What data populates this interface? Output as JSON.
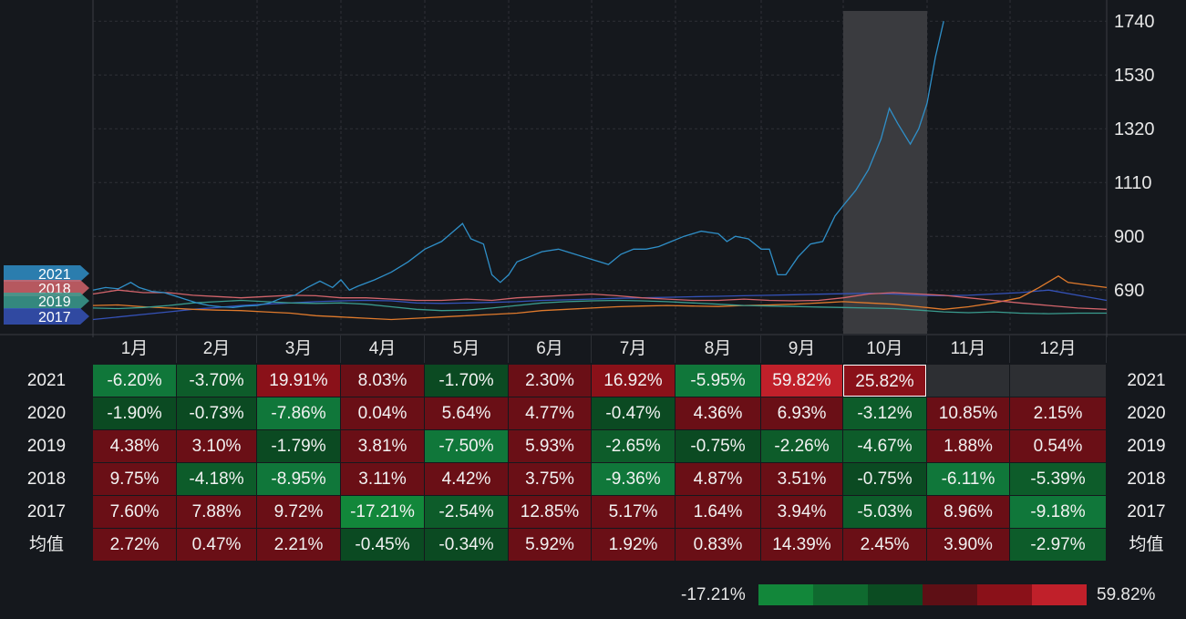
{
  "chart_data": {
    "type": "line",
    "title": "",
    "y_axis_ticks": [
      690,
      900,
      1110,
      1320,
      1530,
      1740
    ],
    "ylim": [
      520,
      1780
    ],
    "x_range": [
      0,
      12
    ],
    "months": [
      "1月",
      "2月",
      "3月",
      "4月",
      "5月",
      "6月",
      "7月",
      "8月",
      "9月",
      "10月",
      "11月",
      "12月"
    ],
    "highlight_month": "10月",
    "series": [
      {
        "name": "2021",
        "color": "#2f8fc8",
        "points": [
          [
            0,
            690
          ],
          [
            0.15,
            700
          ],
          [
            0.3,
            695
          ],
          [
            0.45,
            720
          ],
          [
            0.55,
            700
          ],
          [
            0.7,
            685
          ],
          [
            0.85,
            680
          ],
          [
            1.0,
            665
          ],
          [
            1.1,
            655
          ],
          [
            1.25,
            640
          ],
          [
            1.4,
            630
          ],
          [
            1.55,
            625
          ],
          [
            1.7,
            622
          ],
          [
            1.85,
            628
          ],
          [
            2.0,
            630
          ],
          [
            2.15,
            640
          ],
          [
            2.3,
            660
          ],
          [
            2.45,
            670
          ],
          [
            2.6,
            700
          ],
          [
            2.75,
            725
          ],
          [
            2.9,
            700
          ],
          [
            3.0,
            730
          ],
          [
            3.1,
            690
          ],
          [
            3.2,
            705
          ],
          [
            3.4,
            730
          ],
          [
            3.6,
            760
          ],
          [
            3.8,
            800
          ],
          [
            4.0,
            850
          ],
          [
            4.2,
            880
          ],
          [
            4.45,
            950
          ],
          [
            4.55,
            890
          ],
          [
            4.7,
            870
          ],
          [
            4.8,
            750
          ],
          [
            4.9,
            720
          ],
          [
            5.0,
            750
          ],
          [
            5.1,
            800
          ],
          [
            5.25,
            820
          ],
          [
            5.4,
            840
          ],
          [
            5.6,
            850
          ],
          [
            5.8,
            830
          ],
          [
            6.0,
            810
          ],
          [
            6.1,
            800
          ],
          [
            6.2,
            790
          ],
          [
            6.35,
            830
          ],
          [
            6.5,
            850
          ],
          [
            6.65,
            850
          ],
          [
            6.8,
            860
          ],
          [
            6.95,
            880
          ],
          [
            7.1,
            900
          ],
          [
            7.3,
            920
          ],
          [
            7.5,
            910
          ],
          [
            7.6,
            880
          ],
          [
            7.7,
            900
          ],
          [
            7.85,
            890
          ],
          [
            8.0,
            850
          ],
          [
            8.1,
            850
          ],
          [
            8.2,
            750
          ],
          [
            8.3,
            750
          ],
          [
            8.45,
            820
          ],
          [
            8.6,
            870
          ],
          [
            8.75,
            880
          ],
          [
            8.9,
            980
          ],
          [
            9.0,
            1020
          ],
          [
            9.15,
            1080
          ],
          [
            9.3,
            1160
          ],
          [
            9.45,
            1280
          ],
          [
            9.55,
            1400
          ],
          [
            9.65,
            1340
          ],
          [
            9.8,
            1260
          ],
          [
            9.9,
            1320
          ],
          [
            10.0,
            1420
          ],
          [
            10.1,
            1600
          ],
          [
            10.2,
            1740
          ]
        ]
      },
      {
        "name": "2018",
        "color": "#d2646b",
        "points": [
          [
            0,
            675
          ],
          [
            0.3,
            690
          ],
          [
            0.6,
            680
          ],
          [
            0.9,
            680
          ],
          [
            1.2,
            670
          ],
          [
            1.5,
            665
          ],
          [
            1.8,
            660
          ],
          [
            2.1,
            665
          ],
          [
            2.4,
            670
          ],
          [
            2.7,
            668
          ],
          [
            3.0,
            660
          ],
          [
            3.3,
            660
          ],
          [
            3.6,
            655
          ],
          [
            3.9,
            650
          ],
          [
            4.2,
            650
          ],
          [
            4.5,
            655
          ],
          [
            4.8,
            650
          ],
          [
            5.1,
            660
          ],
          [
            5.4,
            665
          ],
          [
            5.7,
            670
          ],
          [
            6.0,
            675
          ],
          [
            6.3,
            668
          ],
          [
            6.6,
            660
          ],
          [
            6.9,
            655
          ],
          [
            7.2,
            650
          ],
          [
            7.5,
            650
          ],
          [
            7.8,
            655
          ],
          [
            8.1,
            650
          ],
          [
            8.4,
            648
          ],
          [
            8.7,
            650
          ],
          [
            9.0,
            660
          ],
          [
            9.3,
            675
          ],
          [
            9.6,
            680
          ],
          [
            9.9,
            675
          ],
          [
            10.2,
            670
          ],
          [
            10.5,
            660
          ],
          [
            10.8,
            650
          ],
          [
            11.1,
            640
          ],
          [
            11.4,
            630
          ],
          [
            11.7,
            620
          ],
          [
            12.0,
            615
          ]
        ]
      },
      {
        "name": "2019",
        "color": "#3a9c8f",
        "points": [
          [
            0,
            620
          ],
          [
            0.3,
            618
          ],
          [
            0.6,
            622
          ],
          [
            0.9,
            630
          ],
          [
            1.2,
            640
          ],
          [
            1.5,
            645
          ],
          [
            1.8,
            650
          ],
          [
            2.1,
            645
          ],
          [
            2.4,
            640
          ],
          [
            2.7,
            638
          ],
          [
            3.0,
            640
          ],
          [
            3.3,
            635
          ],
          [
            3.6,
            625
          ],
          [
            3.9,
            615
          ],
          [
            4.2,
            610
          ],
          [
            4.5,
            612
          ],
          [
            4.8,
            620
          ],
          [
            5.1,
            630
          ],
          [
            5.4,
            640
          ],
          [
            5.7,
            645
          ],
          [
            6.0,
            648
          ],
          [
            6.3,
            650
          ],
          [
            6.6,
            648
          ],
          [
            6.9,
            645
          ],
          [
            7.2,
            640
          ],
          [
            7.5,
            635
          ],
          [
            7.8,
            630
          ],
          [
            8.1,
            628
          ],
          [
            8.4,
            626
          ],
          [
            8.7,
            624
          ],
          [
            9.0,
            622
          ],
          [
            9.3,
            620
          ],
          [
            9.6,
            618
          ],
          [
            9.9,
            612
          ],
          [
            10.2,
            605
          ],
          [
            10.5,
            602
          ],
          [
            10.8,
            605
          ],
          [
            11.1,
            600
          ],
          [
            11.4,
            598
          ],
          [
            11.7,
            600
          ],
          [
            12.0,
            600
          ]
        ]
      },
      {
        "name": "2020",
        "color": "#e07a2c",
        "points": [
          [
            0,
            630
          ],
          [
            0.3,
            632
          ],
          [
            0.6,
            625
          ],
          [
            0.9,
            620
          ],
          [
            1.2,
            615
          ],
          [
            1.5,
            612
          ],
          [
            1.8,
            610
          ],
          [
            2.1,
            605
          ],
          [
            2.4,
            600
          ],
          [
            2.7,
            590
          ],
          [
            3.0,
            585
          ],
          [
            3.3,
            580
          ],
          [
            3.6,
            575
          ],
          [
            3.9,
            580
          ],
          [
            4.2,
            585
          ],
          [
            4.5,
            590
          ],
          [
            4.8,
            595
          ],
          [
            5.1,
            600
          ],
          [
            5.4,
            610
          ],
          [
            5.7,
            615
          ],
          [
            6.0,
            620
          ],
          [
            6.3,
            625
          ],
          [
            6.6,
            628
          ],
          [
            6.9,
            630
          ],
          [
            7.2,
            628
          ],
          [
            7.5,
            626
          ],
          [
            7.8,
            630
          ],
          [
            8.1,
            632
          ],
          [
            8.4,
            635
          ],
          [
            8.7,
            640
          ],
          [
            9.0,
            645
          ],
          [
            9.3,
            640
          ],
          [
            9.6,
            635
          ],
          [
            9.9,
            625
          ],
          [
            10.2,
            615
          ],
          [
            10.5,
            625
          ],
          [
            10.8,
            640
          ],
          [
            11.1,
            660
          ],
          [
            11.3,
            700
          ],
          [
            11.5,
            745
          ],
          [
            11.6,
            720
          ],
          [
            11.8,
            710
          ],
          [
            12.0,
            700
          ]
        ]
      },
      {
        "name": "2017",
        "color": "#3552b8",
        "points": [
          [
            0,
            575
          ],
          [
            0.3,
            585
          ],
          [
            0.6,
            595
          ],
          [
            0.9,
            605
          ],
          [
            1.2,
            615
          ],
          [
            1.5,
            622
          ],
          [
            1.8,
            630
          ],
          [
            2.1,
            635
          ],
          [
            2.4,
            640
          ],
          [
            2.7,
            645
          ],
          [
            3.0,
            648
          ],
          [
            3.3,
            650
          ],
          [
            3.6,
            648
          ],
          [
            3.9,
            640
          ],
          [
            4.2,
            638
          ],
          [
            4.5,
            640
          ],
          [
            4.8,
            642
          ],
          [
            5.1,
            645
          ],
          [
            5.4,
            650
          ],
          [
            5.7,
            652
          ],
          [
            6.0,
            655
          ],
          [
            6.3,
            658
          ],
          [
            6.6,
            660
          ],
          [
            6.9,
            662
          ],
          [
            7.2,
            664
          ],
          [
            7.5,
            666
          ],
          [
            7.8,
            668
          ],
          [
            8.1,
            670
          ],
          [
            8.4,
            672
          ],
          [
            8.7,
            674
          ],
          [
            9.0,
            676
          ],
          [
            9.3,
            678
          ],
          [
            9.6,
            675
          ],
          [
            9.9,
            670
          ],
          [
            10.2,
            668
          ],
          [
            10.5,
            670
          ],
          [
            10.8,
            675
          ],
          [
            11.1,
            680
          ],
          [
            11.4,
            690
          ],
          [
            11.7,
            670
          ],
          [
            12.0,
            650
          ]
        ]
      }
    ],
    "series_tags": [
      "2021",
      "2018",
      "2019",
      "2017"
    ]
  },
  "table": {
    "columns": [
      "1月",
      "2月",
      "3月",
      "4月",
      "5月",
      "6月",
      "7月",
      "8月",
      "9月",
      "10月",
      "11月",
      "12月"
    ],
    "rows": [
      {
        "label": "2021",
        "values": [
          -6.2,
          -3.7,
          19.91,
          8.03,
          -1.7,
          2.3,
          16.92,
          -5.95,
          59.82,
          25.82,
          null,
          null
        ],
        "text": [
          "-6.20%",
          "-3.70%",
          "19.91%",
          "8.03%",
          "-1.70%",
          "2.30%",
          "16.92%",
          "-5.95%",
          "59.82%",
          "25.82%",
          "",
          ""
        ]
      },
      {
        "label": "2020",
        "values": [
          -1.9,
          -0.73,
          -7.86,
          0.04,
          5.64,
          4.77,
          -0.47,
          4.36,
          6.93,
          -3.12,
          10.85,
          2.15
        ],
        "text": [
          "-1.90%",
          "-0.73%",
          "-7.86%",
          "0.04%",
          "5.64%",
          "4.77%",
          "-0.47%",
          "4.36%",
          "6.93%",
          "-3.12%",
          "10.85%",
          "2.15%"
        ]
      },
      {
        "label": "2019",
        "values": [
          4.38,
          3.1,
          -1.79,
          3.81,
          -7.5,
          5.93,
          -2.65,
          -0.75,
          -2.26,
          -4.67,
          1.88,
          0.54
        ],
        "text": [
          "4.38%",
          "3.10%",
          "-1.79%",
          "3.81%",
          "-7.50%",
          "5.93%",
          "-2.65%",
          "-0.75%",
          "-2.26%",
          "-4.67%",
          "1.88%",
          "0.54%"
        ]
      },
      {
        "label": "2018",
        "values": [
          9.75,
          -4.18,
          -8.95,
          3.11,
          4.42,
          3.75,
          -9.36,
          4.87,
          3.51,
          -0.75,
          -6.11,
          -5.39
        ],
        "text": [
          "9.75%",
          "-4.18%",
          "-8.95%",
          "3.11%",
          "4.42%",
          "3.75%",
          "-9.36%",
          "4.87%",
          "3.51%",
          "-0.75%",
          "-6.11%",
          "-5.39%"
        ]
      },
      {
        "label": "2017",
        "values": [
          7.6,
          7.88,
          9.72,
          -17.21,
          -2.54,
          12.85,
          5.17,
          1.64,
          3.94,
          -5.03,
          8.96,
          -9.18
        ],
        "text": [
          "7.60%",
          "7.88%",
          "9.72%",
          "-17.21%",
          "-2.54%",
          "12.85%",
          "5.17%",
          "1.64%",
          "3.94%",
          "-5.03%",
          "8.96%",
          "-9.18%"
        ]
      },
      {
        "label": "均值",
        "values": [
          2.72,
          0.47,
          2.21,
          -0.45,
          -0.34,
          5.92,
          1.92,
          0.83,
          14.39,
          2.45,
          3.9,
          -2.97
        ],
        "text": [
          "2.72%",
          "0.47%",
          "2.21%",
          "-0.45%",
          "-0.34%",
          "5.92%",
          "1.92%",
          "0.83%",
          "14.39%",
          "2.45%",
          "3.90%",
          "-2.97%"
        ]
      }
    ],
    "selected_cell": {
      "row": "2021",
      "column": "10月"
    }
  },
  "legend": {
    "min_label": "-17.21%",
    "max_label": "59.82%",
    "swatch_colors": [
      "#12873a",
      "#0f6a2f",
      "#0b4c22",
      "#5e0f15",
      "#8a1119",
      "#c0202a"
    ]
  },
  "colors": {
    "background": "#15181d",
    "empty_cell": "#2d2f33",
    "selected_border": "#ffffff"
  }
}
